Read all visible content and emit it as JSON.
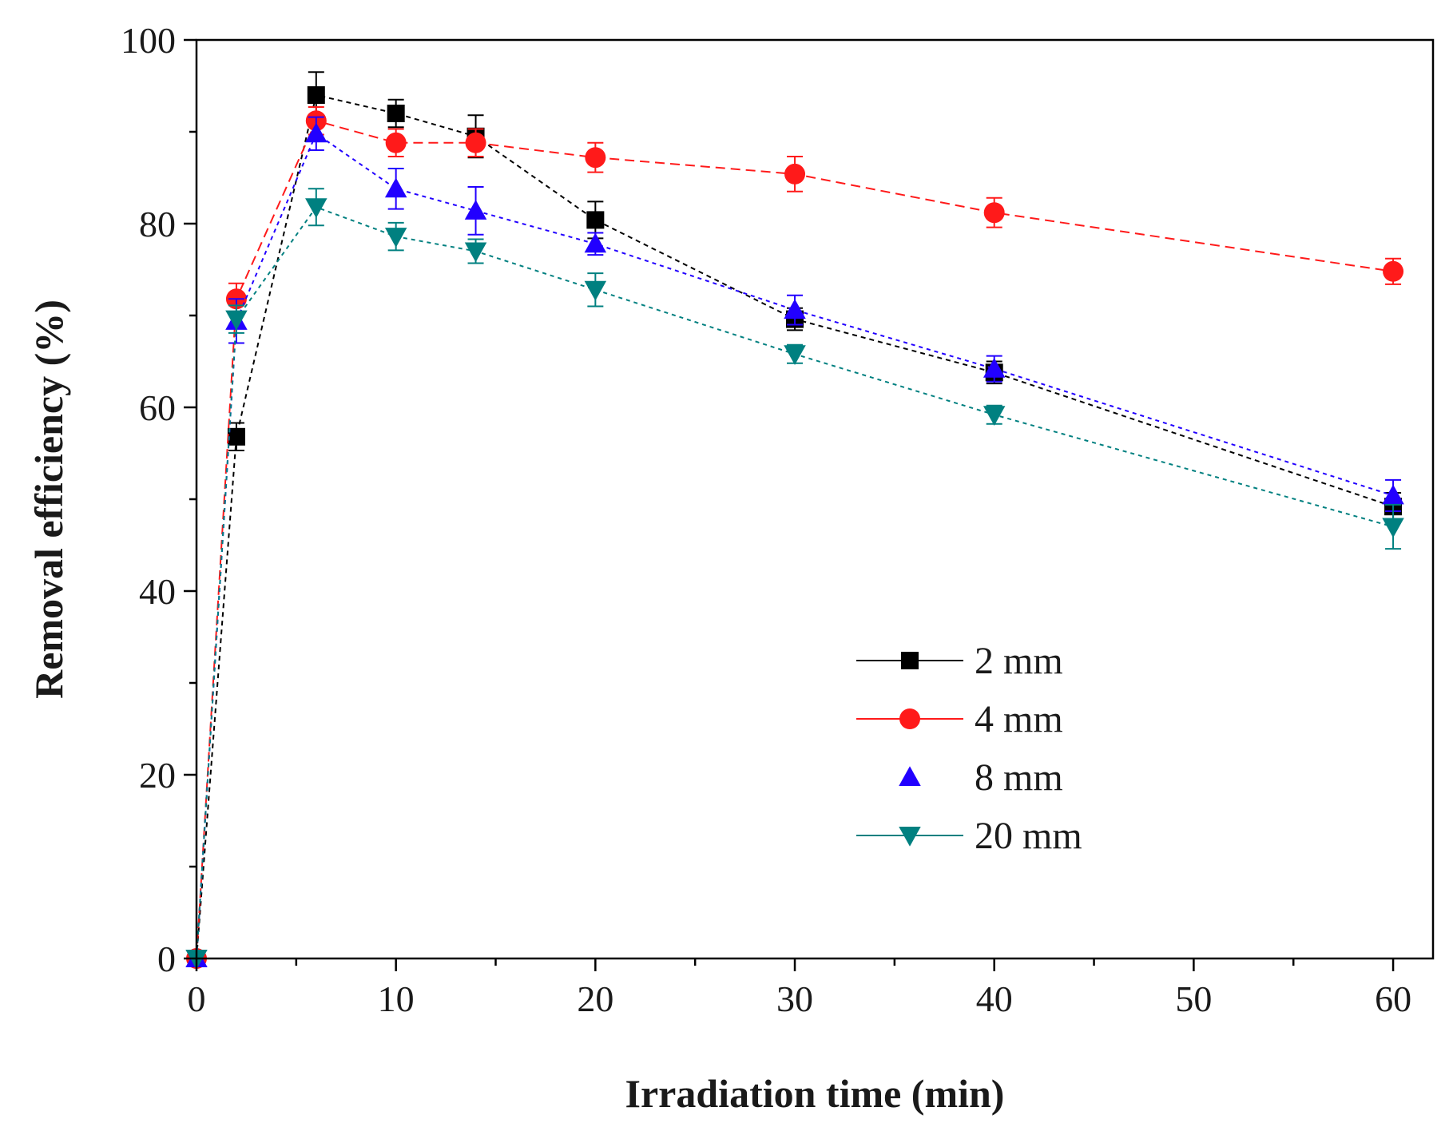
{
  "chart_data": {
    "type": "line",
    "title": "",
    "xlabel": "Irradiation time (min)",
    "ylabel": "Removal efficiency (%)",
    "xlim": [
      0,
      62
    ],
    "ylim": [
      0,
      100
    ],
    "xticks": [
      0,
      10,
      20,
      30,
      40,
      50,
      60
    ],
    "yticks": [
      0,
      20,
      40,
      60,
      80,
      100
    ],
    "x_minor_step": 5,
    "y_minor_step": 10,
    "legend_position": "center-right",
    "series": [
      {
        "name": "2 mm",
        "color": "#000000",
        "marker": "square",
        "dash": "6,5",
        "x": [
          0,
          2,
          6,
          10,
          14,
          20,
          30,
          40,
          60
        ],
        "y": [
          0,
          56.8,
          94.0,
          92.0,
          89.5,
          80.4,
          69.6,
          63.8,
          49.2
        ],
        "err": [
          0,
          1.5,
          2.5,
          1.5,
          2.3,
          2.0,
          1.2,
          1.2,
          1.5
        ]
      },
      {
        "name": "4 mm",
        "color": "#ff1a1a",
        "marker": "circle",
        "dash": "12,7",
        "x": [
          0,
          2,
          6,
          10,
          14,
          20,
          30,
          40,
          60
        ],
        "y": [
          0,
          71.8,
          91.2,
          88.8,
          88.8,
          87.2,
          85.4,
          81.2,
          74.8
        ],
        "err": [
          0,
          1.7,
          1.5,
          1.5,
          1.5,
          1.6,
          1.9,
          1.6,
          1.4
        ]
      },
      {
        "name": "8 mm",
        "color": "#2200ff",
        "marker": "triangle-up",
        "dash": "5,5",
        "x": [
          0,
          2,
          6,
          10,
          14,
          20,
          30,
          40,
          60
        ],
        "y": [
          0,
          69.4,
          89.8,
          83.8,
          81.4,
          77.8,
          70.6,
          64.2,
          50.4
        ],
        "err": [
          0,
          2.4,
          1.8,
          2.2,
          2.6,
          1.2,
          1.6,
          1.4,
          1.7
        ]
      },
      {
        "name": "20 mm",
        "color": "#008080",
        "marker": "triangle-down",
        "dash": "5,5",
        "x": [
          0,
          2,
          6,
          10,
          14,
          20,
          30,
          40,
          60
        ],
        "y": [
          0,
          69.6,
          81.8,
          78.6,
          77.0,
          72.8,
          65.8,
          59.2,
          47.0
        ],
        "err": [
          0,
          1.5,
          2.0,
          1.5,
          1.3,
          1.8,
          1.0,
          1.0,
          2.4
        ]
      }
    ]
  }
}
